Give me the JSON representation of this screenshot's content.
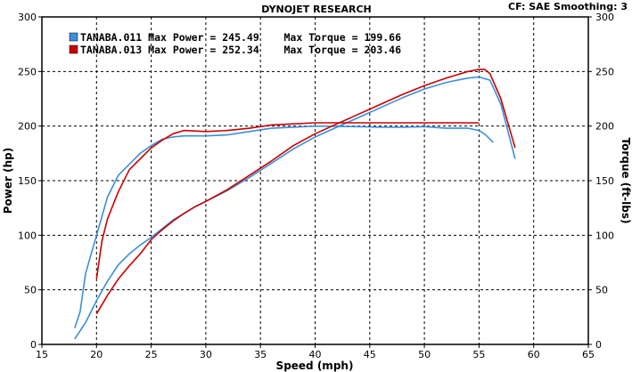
{
  "chart_data": {
    "type": "line",
    "title": "DYNOJET RESEARCH",
    "settings_text": "CF: SAE  Smoothing: 3",
    "xlabel": "Speed (mph)",
    "ylabel_left": "Power (hp)",
    "ylabel_right": "Torque (ft-lbs)",
    "xlim": [
      15,
      65
    ],
    "ylim": [
      0,
      300
    ],
    "x_ticks": [
      "15",
      "20",
      "25",
      "30",
      "35",
      "40",
      "45",
      "50",
      "55",
      "60",
      "65"
    ],
    "y_ticks": [
      "0",
      "50",
      "100",
      "150",
      "200",
      "250",
      "300"
    ],
    "grid": true,
    "legend_position": "top-left",
    "legend": [
      {
        "run": "TANABA.011",
        "text": "TANABA.011 Max Power = 245.49    Max Torque = 199.66",
        "color": "#3b8fd9"
      },
      {
        "run": "TANABA.013",
        "text": "TANABA.013 Max Power = 252.34    Max Torque = 203.46",
        "color": "#cc0000"
      }
    ],
    "series": [
      {
        "name": "TANABA.011",
        "measure": "power",
        "color": "#3b8fd9",
        "x": [
          18,
          19,
          20,
          21,
          22,
          23,
          24,
          25,
          26,
          27,
          28,
          29,
          30,
          32,
          34,
          36,
          38,
          40,
          42,
          44,
          46,
          48,
          50,
          52,
          54,
          55,
          56,
          57,
          58.3
        ],
        "y": [
          5,
          20,
          40,
          58,
          73,
          83,
          91,
          98,
          106,
          114,
          120,
          126,
          131,
          141,
          153,
          166,
          179,
          190,
          199,
          208,
          217,
          226,
          234,
          240,
          244,
          245,
          242,
          220,
          170
        ]
      },
      {
        "name": "TANABA.011",
        "measure": "torque",
        "color": "#3b8fd9",
        "x": [
          18,
          18.5,
          19,
          20,
          21,
          22,
          23,
          24,
          25,
          26,
          27,
          28,
          30,
          32,
          34,
          36,
          38,
          40,
          42,
          44,
          46,
          48,
          50,
          52,
          54,
          55,
          55.6,
          56.3
        ],
        "y": [
          15,
          30,
          65,
          100,
          135,
          155,
          165,
          175,
          182,
          188,
          190,
          191,
          191,
          192,
          195,
          198,
          199,
          200,
          199.7,
          199.5,
          199,
          199,
          199.5,
          198,
          198,
          196,
          192,
          185
        ]
      },
      {
        "name": "TANABA.013",
        "measure": "power",
        "color": "#cc0000",
        "x": [
          20,
          21,
          22,
          23,
          24,
          25,
          26,
          27,
          28,
          29,
          30,
          32,
          34,
          36,
          38,
          40,
          42,
          44,
          46,
          48,
          50,
          52,
          54,
          55,
          55.5,
          56,
          57,
          58.3
        ],
        "y": [
          28,
          45,
          60,
          72,
          83,
          96,
          105,
          113,
          120,
          126,
          131,
          142,
          155,
          168,
          182,
          193,
          202,
          211,
          220,
          229,
          237,
          244,
          250,
          252,
          252,
          248,
          225,
          180
        ]
      },
      {
        "name": "TANABA.013",
        "measure": "torque",
        "color": "#cc0000",
        "x": [
          20,
          20.5,
          21,
          22,
          23,
          24,
          25,
          26,
          27,
          28,
          30,
          32,
          34,
          36,
          38,
          40,
          42,
          44,
          46,
          48,
          50,
          52,
          54,
          55
        ],
        "y": [
          60,
          95,
          115,
          140,
          160,
          170,
          180,
          187,
          193,
          196,
          195,
          196,
          198,
          201,
          202,
          203,
          203,
          203,
          203,
          203,
          203,
          203,
          203,
          203
        ]
      }
    ]
  }
}
